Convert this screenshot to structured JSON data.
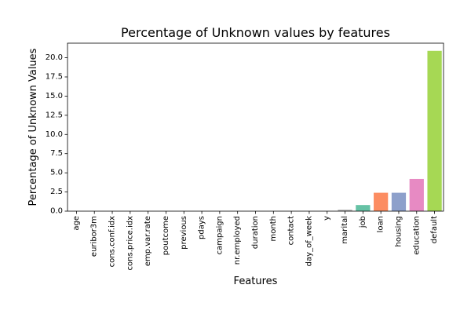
{
  "chart_data": {
    "type": "bar",
    "title": "Percentage of Unknown values by features",
    "xlabel": "Features",
    "ylabel": "Percentage of Unknown Values",
    "categories": [
      "age",
      "euribor3m",
      "cons.conf.idx",
      "cons.price.idx",
      "emp.var.rate",
      "poutcome",
      "previous",
      "pdays",
      "campaign",
      "nr.employed",
      "duration",
      "month",
      "contact",
      "day_of_week",
      "y",
      "marital",
      "job",
      "loan",
      "housing",
      "education",
      "default"
    ],
    "values": [
      0,
      0,
      0,
      0,
      0,
      0,
      0,
      0,
      0,
      0,
      0,
      0,
      0,
      0,
      0,
      0.19,
      0.8,
      2.4,
      2.4,
      4.2,
      20.9
    ],
    "colors": [
      "#66c2a5",
      "#fc8d62",
      "#8da0cb",
      "#e78ac3",
      "#a6d854",
      "#ffd92f",
      "#e5c494",
      "#b3b3b3",
      "#66c2a5",
      "#fc8d62",
      "#8da0cb",
      "#e78ac3",
      "#a6d854",
      "#ffd92f",
      "#e5c494",
      "#b3b3b3",
      "#66c2a5",
      "#fc8d62",
      "#8da0cb",
      "#e78ac3",
      "#a6d854"
    ],
    "yticks": [
      "0.0",
      "2.5",
      "5.0",
      "7.5",
      "10.0",
      "12.5",
      "15.0",
      "17.5",
      "20.0"
    ],
    "ylim": [
      0,
      21.9
    ],
    "grid": false,
    "legend": "none"
  }
}
